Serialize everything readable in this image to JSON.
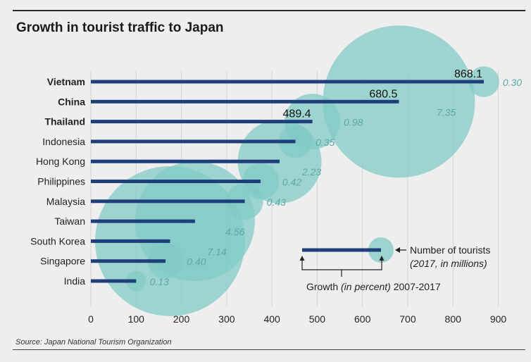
{
  "chart_data": {
    "type": "bar",
    "orientation": "horizontal",
    "title": "Growth in tourist traffic to Japan",
    "source": "Source: Japan National Tourism Organization",
    "xlim": [
      0,
      900
    ],
    "xticks": [
      "0",
      "100",
      "200",
      "300",
      "400",
      "500",
      "600",
      "700",
      "800",
      "900"
    ],
    "grid": true,
    "categories": [
      "Vietnam",
      "China",
      "Thailand",
      "Indonesia",
      "Hong Kong",
      "Philippines",
      "Malaysia",
      "Taiwan",
      "South Korea",
      "Singapore",
      "India"
    ],
    "bold_categories": [
      "Vietnam",
      "China",
      "Thailand"
    ],
    "series": [
      {
        "name": "Number of tourists (2017, in millions)",
        "values": [
          868.1,
          680.5,
          489.4,
          452,
          417,
          375,
          340,
          230,
          175,
          165,
          100
        ],
        "value_labels": [
          "868.1",
          "680.5",
          "489.4",
          "",
          "",
          "",
          "",
          "",
          "",
          "",
          ""
        ]
      },
      {
        "name": "Growth (in percent) 2007-2017",
        "values": [
          0.3,
          7.35,
          0.98,
          0.35,
          2.23,
          0.42,
          0.43,
          4.56,
          7.14,
          0.4,
          0.13
        ],
        "value_labels": [
          "0.30",
          "7.35",
          "0.98",
          "0.35",
          "2.23",
          "0.42",
          "0.43",
          "4.56",
          "7.14",
          "0.40",
          "0.13"
        ]
      }
    ],
    "legend": {
      "tourists_label": "Number of tourists",
      "tourists_sub": "(2017, in millions)",
      "growth_label_a": "Growth ",
      "growth_label_b": "(in percent)",
      "growth_label_c": " 2007-2017"
    },
    "colors": {
      "bar": "#1f3f7a",
      "bubble": "#7fcac4",
      "growth_text": "#5aa8a6",
      "grid": "#d4d4d4",
      "background": "#eeeeef"
    }
  }
}
